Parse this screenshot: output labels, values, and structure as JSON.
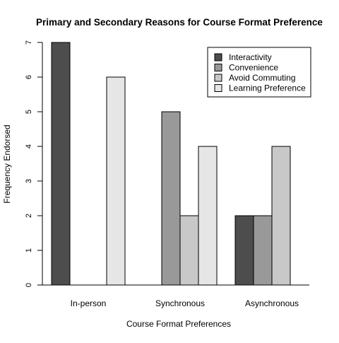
{
  "chart_data": {
    "type": "bar",
    "title": "Primary and Secondary Reasons for Course Format Preference",
    "xlabel": "Course Format Preferences",
    "ylabel": "Frequency Endorsed",
    "categories": [
      "In-person",
      "Synchronous",
      "Asynchronous"
    ],
    "series": [
      {
        "name": "Interactivity",
        "values": [
          7,
          0,
          2
        ],
        "color": "#4d4d4d"
      },
      {
        "name": "Convenience",
        "values": [
          0,
          5,
          2
        ],
        "color": "#999999"
      },
      {
        "name": "Avoid Commuting",
        "values": [
          0,
          2,
          4
        ],
        "color": "#c8c8c8"
      },
      {
        "name": "Learning Preference",
        "values": [
          6,
          4,
          0
        ],
        "color": "#e6e6e6"
      }
    ],
    "ylim": [
      0,
      7
    ],
    "yticks": [
      0,
      1,
      2,
      3,
      4,
      5,
      6,
      7
    ],
    "grid": false,
    "legend": "top-right"
  }
}
